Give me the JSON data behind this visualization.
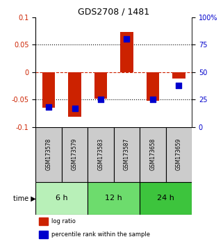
{
  "title": "GDS2708 / 1481",
  "samples": [
    "GSM173578",
    "GSM173579",
    "GSM173583",
    "GSM173587",
    "GSM173658",
    "GSM173659"
  ],
  "log_ratio": [
    -0.065,
    -0.082,
    -0.048,
    0.073,
    -0.052,
    -0.012
  ],
  "percentile_rank": [
    18,
    17,
    25,
    80,
    25,
    38
  ],
  "time_groups": [
    {
      "label": "6 h",
      "start": 0,
      "end": 2,
      "color": "#b8f0b8"
    },
    {
      "label": "12 h",
      "start": 2,
      "end": 4,
      "color": "#6ddc6d"
    },
    {
      "label": "24 h",
      "start": 4,
      "end": 6,
      "color": "#3dc43d"
    }
  ],
  "ylim_left": [
    -0.1,
    0.1
  ],
  "ylim_right": [
    0,
    100
  ],
  "yticks_left": [
    -0.1,
    -0.05,
    0,
    0.05,
    0.1
  ],
  "yticks_right": [
    0,
    25,
    50,
    75,
    100
  ],
  "ytick_labels_right": [
    "0",
    "25",
    "50",
    "75",
    "100%"
  ],
  "bar_color": "#cc2200",
  "dot_color": "#0000cc",
  "bar_width": 0.5,
  "dot_size": 35,
  "grid_color": "black",
  "zero_line_color": "#cc2200",
  "background_color": "#ffffff",
  "plot_bg": "#ffffff",
  "sample_bg": "#cccccc",
  "title_fontsize": 9,
  "tick_fontsize": 7,
  "sample_fontsize": 5.5,
  "time_fontsize": 8,
  "legend_fontsize": 6
}
